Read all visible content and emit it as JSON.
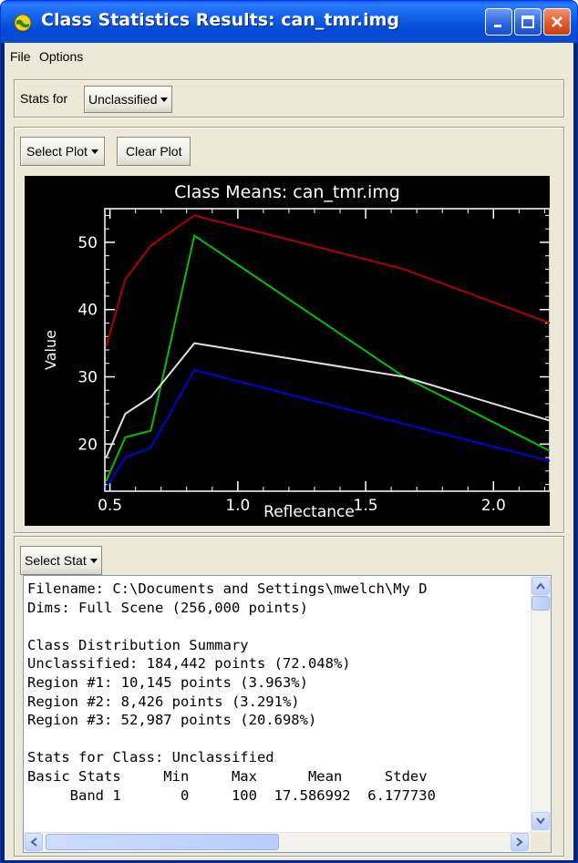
{
  "window": {
    "title": "Class Statistics Results: can_tmr.img"
  },
  "menu": {
    "items": [
      "File",
      "Options"
    ]
  },
  "stats_for": {
    "label": "Stats for",
    "selected": "Unclassified"
  },
  "plot_toolbar": {
    "select_plot": "Select Plot",
    "clear_plot": "Clear Plot"
  },
  "stat_toolbar": {
    "select_stat": "Select Stat"
  },
  "chart_data": {
    "type": "line",
    "title": "Class Means: can_tmr.img",
    "xlabel": "Reflectance",
    "ylabel": "Value",
    "xlim": [
      0.48,
      2.22
    ],
    "ylim": [
      13,
      55
    ],
    "xticks": [
      "0.5",
      "1.0",
      "1.5",
      "2.0"
    ],
    "yticks": [
      "20",
      "30",
      "40",
      "50"
    ],
    "series": [
      {
        "color": "#b00000",
        "x": [
          0.485,
          0.56,
          0.66,
          0.83,
          1.65,
          2.22
        ],
        "y": [
          34.5,
          44.5,
          49.5,
          54,
          46,
          38
        ]
      },
      {
        "color": "#00c000",
        "x": [
          0.485,
          0.56,
          0.66,
          0.83,
          1.65,
          2.22
        ],
        "y": [
          14.5,
          21,
          22,
          51,
          30,
          19
        ]
      },
      {
        "color": "#e0e0e0",
        "x": [
          0.485,
          0.56,
          0.66,
          0.83,
          1.65,
          2.22
        ],
        "y": [
          18,
          24.5,
          27,
          35,
          30,
          23.5
        ]
      },
      {
        "color": "#0000e0",
        "x": [
          0.485,
          0.56,
          0.66,
          0.83,
          1.65,
          2.22
        ],
        "y": [
          13.5,
          18,
          19.5,
          31,
          23,
          17.5
        ]
      }
    ]
  },
  "output": {
    "lines": [
      "Filename: C:\\Documents and Settings\\mwelch\\My D",
      "Dims: Full Scene (256,000 points)",
      "",
      "Class Distribution Summary",
      "Unclassified: 184,442 points (72.048%)",
      "Region #1: 10,145 points (3.963%)",
      "Region #2: 8,426 points (3.291%)",
      "Region #3: 52,987 points (20.698%)",
      "",
      "Stats for Class: Unclassified",
      "Basic Stats     Min     Max      Mean     Stdev",
      "     Band 1       0     100  17.586992  6.177730"
    ]
  },
  "colors": {
    "titlebar": "#0b4bd0",
    "client_bg": "#ece9d8",
    "plot_bg": "#000000",
    "close_button": "#e05a2a"
  }
}
